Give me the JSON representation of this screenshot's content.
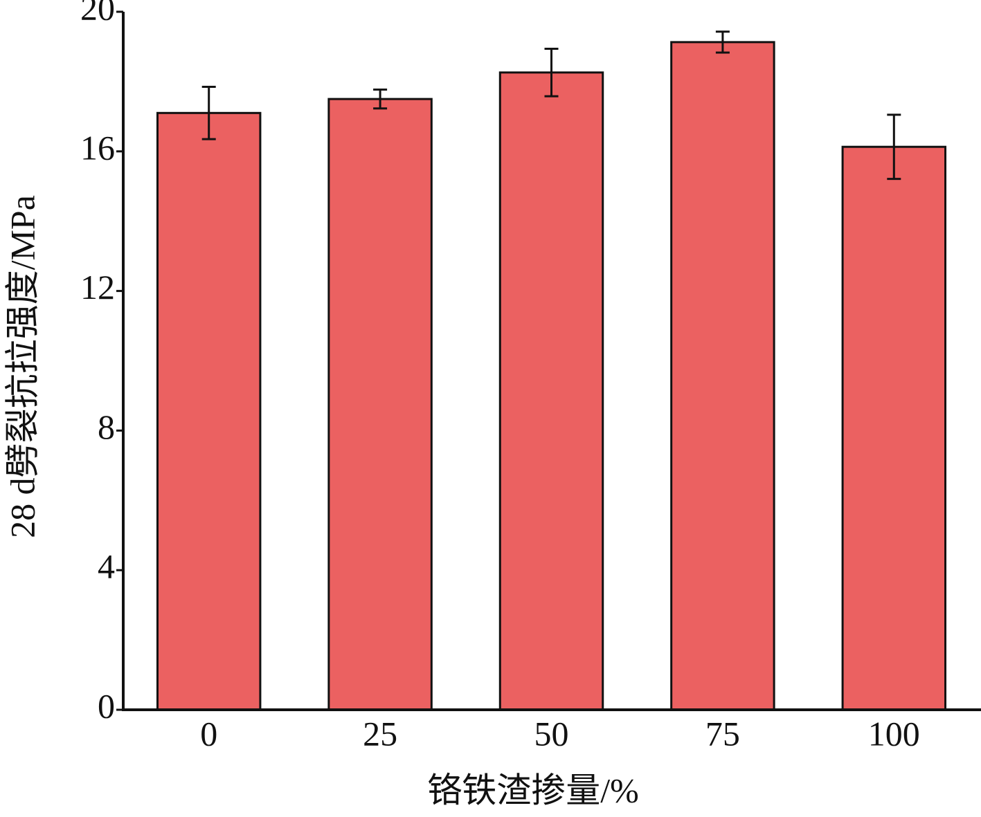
{
  "chart_data": {
    "type": "bar",
    "categories": [
      "0",
      "25",
      "50",
      "75",
      "100"
    ],
    "values": [
      17.1,
      17.5,
      18.26,
      19.13,
      16.13
    ],
    "errors": [
      0.75,
      0.27,
      0.68,
      0.3,
      0.92
    ],
    "color": "#eb6161",
    "xlabel": "铬铁渣掺量/%",
    "ylabel": "28 d劈裂抗拉强度/MPa",
    "ylim": [
      0,
      20
    ],
    "yticks": [
      0,
      4,
      8,
      12,
      16,
      20
    ],
    "grid": false
  }
}
